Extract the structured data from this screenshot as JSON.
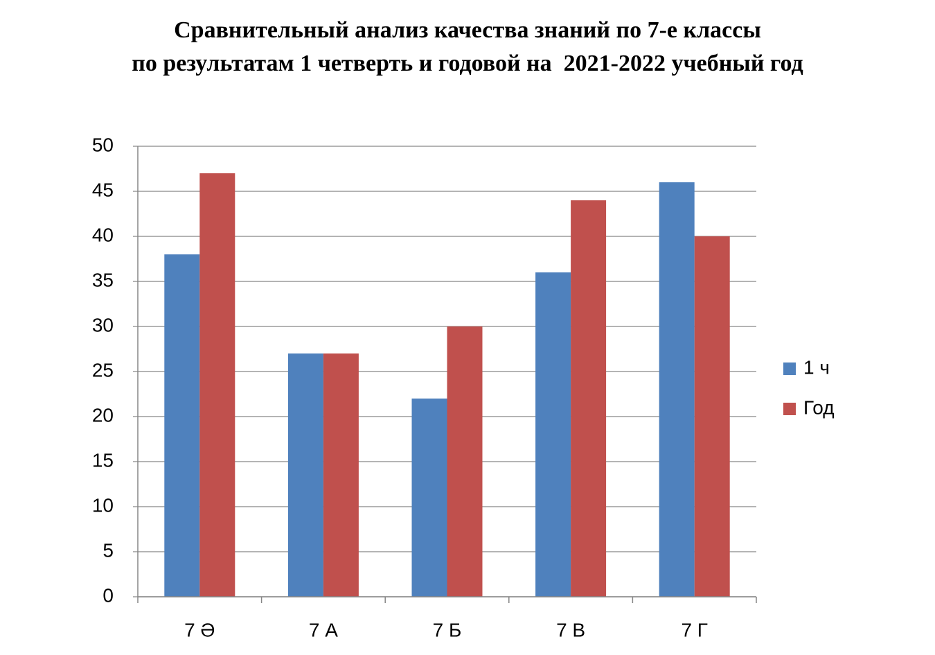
{
  "chart_data": {
    "type": "bar",
    "title": [
      "Сравнительный анализ качества знаний по 7-е классы",
      "по результатам 1 четверть и годовой на  2021-2022 учебный год"
    ],
    "categories": [
      "7 Ә",
      "7 А",
      "7 Б",
      "7 В",
      "7 Г"
    ],
    "series": [
      {
        "name": "1 ч",
        "color": "#4f81bd",
        "values": [
          38,
          27,
          22,
          36,
          46
        ]
      },
      {
        "name": "Год",
        "color": "#c0504d",
        "values": [
          47,
          27,
          30,
          44,
          40
        ]
      }
    ],
    "ylim": [
      0,
      50
    ],
    "yticks": [
      0,
      5,
      10,
      15,
      20,
      25,
      30,
      35,
      40,
      45,
      50
    ],
    "grid": true,
    "legend": "right"
  }
}
